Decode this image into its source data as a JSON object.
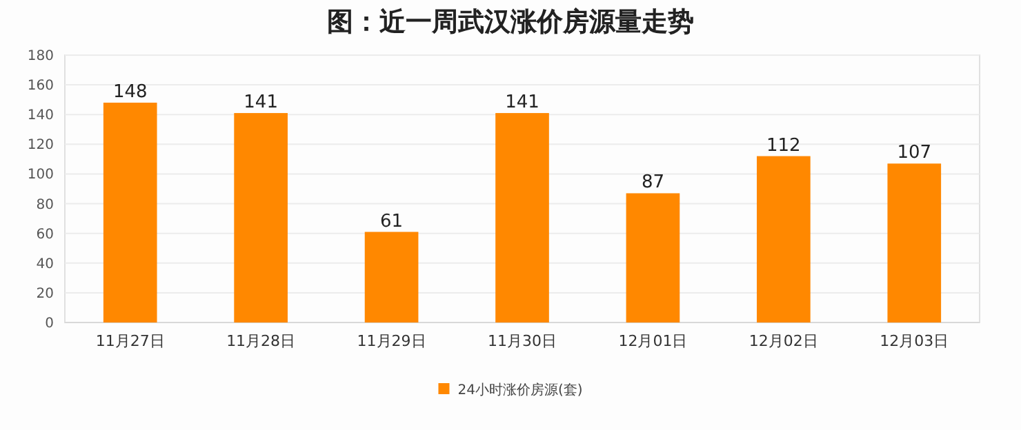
{
  "chart_data": {
    "type": "bar",
    "title": "图：近一周武汉涨价房源量走势",
    "categories": [
      "11月27日",
      "11月28日",
      "11月29日",
      "11月30日",
      "12月01日",
      "12月02日",
      "12月03日"
    ],
    "series": [
      {
        "name": "24小时涨价房源(套)",
        "color": "#ff8800",
        "values": [
          148,
          141,
          61,
          141,
          87,
          112,
          107
        ]
      }
    ],
    "ylim": [
      0,
      180
    ],
    "yticks": [
      0,
      20,
      40,
      60,
      80,
      100,
      120,
      140,
      160,
      180
    ],
    "grid": "y",
    "data_labels": true,
    "legend": "bottom"
  }
}
